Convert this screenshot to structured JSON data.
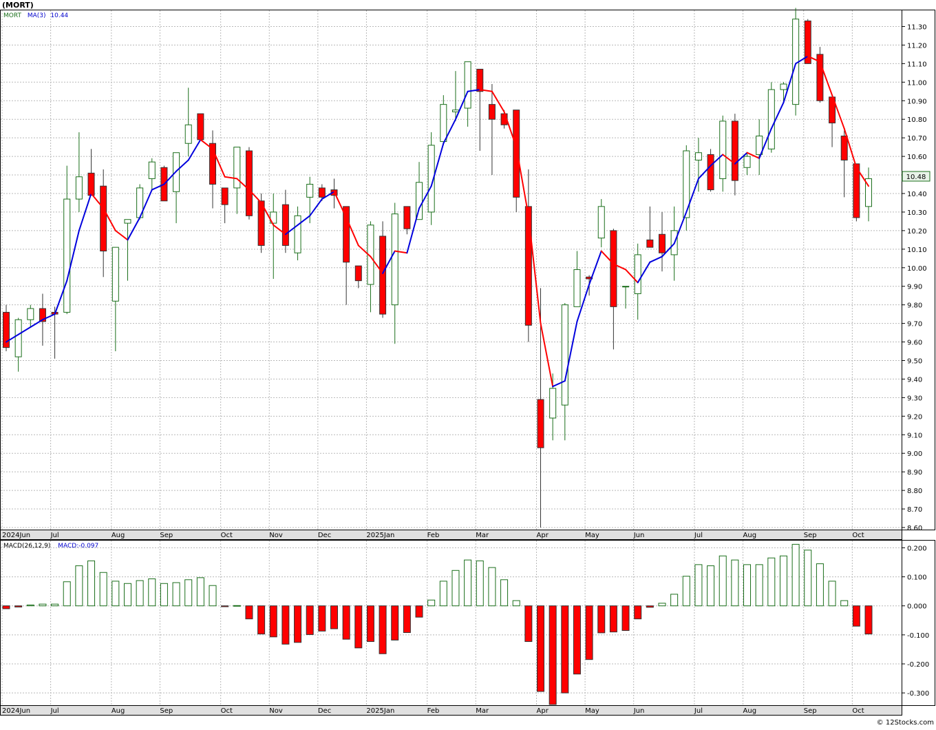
{
  "title": "(MORT)",
  "footer": "© 12Stocks.com",
  "colors": {
    "up": "#1a6e1a",
    "down": "#ff0000",
    "ma_up": "#0000dd",
    "ma_down": "#ff0000",
    "grid": "#b8b8b8",
    "label_bg": "#e9f3e9"
  },
  "price_panel": {
    "legend": {
      "symbol": "MORT",
      "ma_label": "MA(3)",
      "ma_value": "10.44"
    },
    "last_price_label": "10.48",
    "yticks": [
      8.6,
      8.7,
      8.8,
      8.9,
      9.0,
      9.1,
      9.2,
      9.3,
      9.4,
      9.5,
      9.6,
      9.7,
      9.8,
      9.9,
      10.0,
      10.1,
      10.2,
      10.3,
      10.4,
      10.5,
      10.6,
      10.7,
      10.8,
      10.9,
      11.0,
      11.1,
      11.2,
      11.3
    ],
    "ylim": [
      8.6,
      11.35
    ]
  },
  "macd_panel": {
    "legend": {
      "label": "MACD(26,12,9)",
      "value_label": "MACD:-0.097"
    },
    "yticks": [
      0.2,
      0.1,
      0.0,
      -0.1,
      -0.2,
      -0.3
    ],
    "ytick_labels": [
      "0.200",
      "0.100",
      "0.000",
      "-0.100",
      "-0.200",
      "-0.300"
    ],
    "ylim": [
      -0.34,
      0.22
    ]
  },
  "x_axis": {
    "labels": [
      "2024Jun",
      "Jul",
      "Aug",
      "Sep",
      "Oct",
      "Nov",
      "Dec",
      "2025Jan",
      "Feb",
      "Mar",
      "Apr",
      "May",
      "Jun",
      "Jul",
      "Aug",
      "Sep",
      "Oct"
    ],
    "label_week_index": [
      0,
      4,
      9,
      13,
      18,
      22,
      26,
      30,
      35,
      39,
      44,
      48,
      52,
      57,
      61,
      66,
      70
    ]
  },
  "chart_data": {
    "type": "candlestick",
    "period": "weekly",
    "series": [
      {
        "o": 9.76,
        "h": 9.8,
        "l": 9.55,
        "c": 9.57
      },
      {
        "o": 9.52,
        "h": 9.73,
        "l": 9.44,
        "c": 9.72
      },
      {
        "o": 9.72,
        "h": 9.8,
        "l": 9.68,
        "c": 9.78
      },
      {
        "o": 9.78,
        "h": 9.86,
        "l": 9.58,
        "c": 9.71
      },
      {
        "o": 9.76,
        "h": 9.79,
        "l": 9.51,
        "c": 9.75
      },
      {
        "o": 9.76,
        "h": 10.55,
        "l": 9.75,
        "c": 10.37
      },
      {
        "o": 10.37,
        "h": 10.73,
        "l": 10.3,
        "c": 10.49
      },
      {
        "o": 10.51,
        "h": 10.64,
        "l": 10.4,
        "c": 10.39
      },
      {
        "o": 10.44,
        "h": 10.53,
        "l": 9.95,
        "c": 10.09
      },
      {
        "o": 9.82,
        "h": 10.11,
        "l": 9.55,
        "c": 10.11
      },
      {
        "o": 10.24,
        "h": 10.26,
        "l": 9.93,
        "c": 10.26
      },
      {
        "o": 10.27,
        "h": 10.45,
        "l": 10.26,
        "c": 10.43
      },
      {
        "o": 10.48,
        "h": 10.59,
        "l": 10.42,
        "c": 10.57
      },
      {
        "o": 10.54,
        "h": 10.55,
        "l": 10.36,
        "c": 10.36
      },
      {
        "o": 10.41,
        "h": 10.62,
        "l": 10.24,
        "c": 10.62
      },
      {
        "o": 10.67,
        "h": 10.97,
        "l": 10.6,
        "c": 10.77
      },
      {
        "o": 10.83,
        "h": 10.83,
        "l": 10.69,
        "c": 10.69
      },
      {
        "o": 10.67,
        "h": 10.74,
        "l": 10.32,
        "c": 10.45
      },
      {
        "o": 10.43,
        "h": 10.43,
        "l": 10.24,
        "c": 10.34
      },
      {
        "o": 10.43,
        "h": 10.65,
        "l": 10.29,
        "c": 10.65
      },
      {
        "o": 10.63,
        "h": 10.65,
        "l": 10.26,
        "c": 10.28
      },
      {
        "o": 10.36,
        "h": 10.4,
        "l": 10.08,
        "c": 10.12
      },
      {
        "o": 10.24,
        "h": 10.4,
        "l": 9.94,
        "c": 10.3
      },
      {
        "o": 10.34,
        "h": 10.42,
        "l": 10.08,
        "c": 10.12
      },
      {
        "o": 10.08,
        "h": 10.33,
        "l": 10.04,
        "c": 10.28
      },
      {
        "o": 10.38,
        "h": 10.49,
        "l": 10.24,
        "c": 10.45
      },
      {
        "o": 10.43,
        "h": 10.45,
        "l": 10.36,
        "c": 10.38
      },
      {
        "o": 10.42,
        "h": 10.48,
        "l": 10.32,
        "c": 10.39
      },
      {
        "o": 10.33,
        "h": 10.33,
        "l": 9.8,
        "c": 10.03
      },
      {
        "o": 10.01,
        "h": 10.01,
        "l": 9.89,
        "c": 9.93
      },
      {
        "o": 9.91,
        "h": 10.25,
        "l": 9.76,
        "c": 10.23
      },
      {
        "o": 10.17,
        "h": 10.25,
        "l": 9.73,
        "c": 9.75
      },
      {
        "o": 9.8,
        "h": 10.35,
        "l": 9.59,
        "c": 10.29
      },
      {
        "o": 10.33,
        "h": 10.33,
        "l": 10.18,
        "c": 10.21
      },
      {
        "o": 10.26,
        "h": 10.57,
        "l": 10.26,
        "c": 10.46
      },
      {
        "o": 10.3,
        "h": 10.73,
        "l": 10.23,
        "c": 10.66
      },
      {
        "o": 10.68,
        "h": 10.93,
        "l": 10.66,
        "c": 10.88
      },
      {
        "o": 10.84,
        "h": 11.06,
        "l": 10.79,
        "c": 10.85
      },
      {
        "o": 10.86,
        "h": 11.11,
        "l": 10.76,
        "c": 11.11
      },
      {
        "o": 11.07,
        "h": 11.07,
        "l": 10.63,
        "c": 10.95
      },
      {
        "o": 10.88,
        "h": 10.99,
        "l": 10.5,
        "c": 10.8
      },
      {
        "o": 10.83,
        "h": 10.85,
        "l": 10.75,
        "c": 10.77
      },
      {
        "o": 10.85,
        "h": 10.85,
        "l": 10.3,
        "c": 10.38
      },
      {
        "o": 10.33,
        "h": 10.53,
        "l": 9.6,
        "c": 9.69
      },
      {
        "o": 9.29,
        "h": 9.89,
        "l": 8.6,
        "c": 9.03
      },
      {
        "o": 9.19,
        "h": 9.43,
        "l": 9.07,
        "c": 9.35
      },
      {
        "o": 9.26,
        "h": 9.81,
        "l": 9.07,
        "c": 9.8
      },
      {
        "o": 9.79,
        "h": 10.09,
        "l": 9.79,
        "c": 9.99
      },
      {
        "o": 9.95,
        "h": 9.96,
        "l": 9.85,
        "c": 9.94
      },
      {
        "o": 10.16,
        "h": 10.37,
        "l": 10.11,
        "c": 10.33
      },
      {
        "o": 10.2,
        "h": 10.21,
        "l": 9.56,
        "c": 9.79
      },
      {
        "o": 9.9,
        "h": 9.9,
        "l": 9.78,
        "c": 9.9
      },
      {
        "o": 9.86,
        "h": 10.13,
        "l": 9.72,
        "c": 10.07
      },
      {
        "o": 10.15,
        "h": 10.33,
        "l": 10.11,
        "c": 10.11
      },
      {
        "o": 10.18,
        "h": 10.3,
        "l": 9.98,
        "c": 10.08
      },
      {
        "o": 10.07,
        "h": 10.33,
        "l": 9.93,
        "c": 10.2
      },
      {
        "o": 10.27,
        "h": 10.66,
        "l": 10.2,
        "c": 10.63
      },
      {
        "o": 10.58,
        "h": 10.7,
        "l": 10.41,
        "c": 10.62
      },
      {
        "o": 10.61,
        "h": 10.64,
        "l": 10.41,
        "c": 10.42
      },
      {
        "o": 10.48,
        "h": 10.82,
        "l": 10.41,
        "c": 10.79
      },
      {
        "o": 10.79,
        "h": 10.83,
        "l": 10.39,
        "c": 10.47
      },
      {
        "o": 10.54,
        "h": 10.62,
        "l": 10.5,
        "c": 10.6
      },
      {
        "o": 10.61,
        "h": 10.8,
        "l": 10.5,
        "c": 10.71
      },
      {
        "o": 10.64,
        "h": 11.0,
        "l": 10.62,
        "c": 10.96
      },
      {
        "o": 10.96,
        "h": 11.0,
        "l": 10.89,
        "c": 10.99
      },
      {
        "o": 10.88,
        "h": 11.4,
        "l": 10.82,
        "c": 11.34
      },
      {
        "o": 11.33,
        "h": 11.34,
        "l": 11.1,
        "c": 11.1
      },
      {
        "o": 11.15,
        "h": 11.19,
        "l": 10.89,
        "c": 10.9
      },
      {
        "o": 10.92,
        "h": 10.92,
        "l": 10.65,
        "c": 10.78
      },
      {
        "o": 10.71,
        "h": 10.74,
        "l": 10.38,
        "c": 10.58
      },
      {
        "o": 10.56,
        "h": 10.56,
        "l": 10.25,
        "c": 10.27
      },
      {
        "o": 10.33,
        "h": 10.54,
        "l": 10.25,
        "c": 10.48
      }
    ],
    "ma3": [
      9.6,
      9.64,
      9.68,
      9.72,
      9.75,
      9.93,
      10.2,
      10.4,
      10.32,
      10.2,
      10.15,
      10.27,
      10.42,
      10.45,
      10.52,
      10.58,
      10.69,
      10.64,
      10.49,
      10.48,
      10.42,
      10.35,
      10.23,
      10.18,
      10.23,
      10.28,
      10.37,
      10.41,
      10.27,
      10.12,
      10.06,
      9.97,
      10.09,
      10.08,
      10.32,
      10.44,
      10.67,
      10.8,
      10.95,
      10.96,
      10.95,
      10.84,
      10.65,
      10.28,
      9.7,
      9.36,
      9.39,
      9.71,
      9.91,
      10.09,
      10.02,
      9.99,
      9.92,
      10.03,
      10.06,
      10.13,
      10.3,
      10.48,
      10.55,
      10.61,
      10.56,
      10.62,
      10.59,
      10.75,
      10.89,
      11.1,
      11.14,
      11.11,
      10.93,
      10.75,
      10.54,
      10.44
    ],
    "macd_hist": [
      -0.01,
      -0.004,
      0.003,
      0.006,
      0.006,
      0.083,
      0.138,
      0.155,
      0.115,
      0.085,
      0.077,
      0.087,
      0.093,
      0.077,
      0.08,
      0.09,
      0.097,
      0.07,
      -0.003,
      0.001,
      -0.045,
      -0.097,
      -0.107,
      -0.132,
      -0.126,
      -0.099,
      -0.087,
      -0.079,
      -0.115,
      -0.145,
      -0.123,
      -0.165,
      -0.118,
      -0.092,
      -0.039,
      0.02,
      0.085,
      0.122,
      0.158,
      0.155,
      0.132,
      0.09,
      0.018,
      -0.123,
      -0.295,
      -0.34,
      -0.3,
      -0.235,
      -0.185,
      -0.093,
      -0.09,
      -0.085,
      -0.045,
      -0.005,
      0.009,
      0.04,
      0.102,
      0.142,
      0.138,
      0.172,
      0.158,
      0.142,
      0.142,
      0.165,
      0.172,
      0.212,
      0.192,
      0.145,
      0.085,
      0.018,
      -0.07,
      -0.097
    ]
  }
}
